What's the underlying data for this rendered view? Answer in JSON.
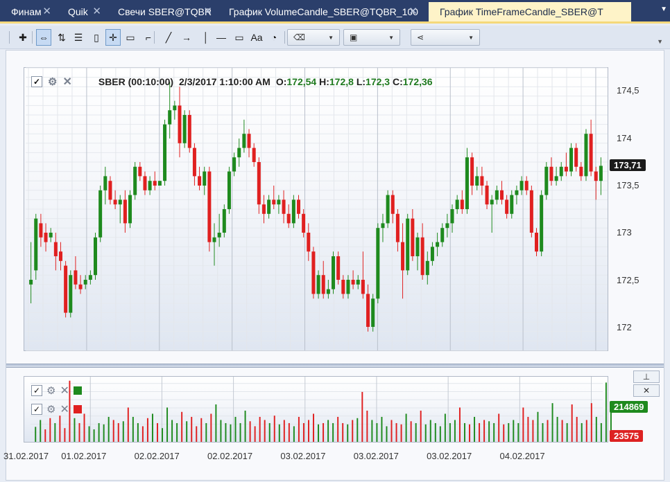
{
  "tabs": [
    {
      "label": "Финам",
      "active": false
    },
    {
      "label": "Quik",
      "active": false
    },
    {
      "label": "Свечи SBER@TQBR",
      "active": false
    },
    {
      "label": "График VolumeCandle_SBER@TQBR_100",
      "active": false
    },
    {
      "label": "График TimeFrameCandle_SBER@T",
      "active": true
    }
  ],
  "tab_close_glyph": "✕",
  "toolbar": {
    "tools": [
      "add-icon",
      "scroll-sync-icon",
      "sort-icon",
      "list-icon",
      "page-icon",
      "crosshair-icon",
      "comment-icon",
      "ruler-icon",
      "trendline-icon",
      "arrow-icon",
      "vline-icon",
      "hline-icon",
      "rectangle-icon",
      "text-icon",
      "gauge-icon"
    ],
    "combos": [
      "eraser-icon",
      "save-icon",
      "share-icon"
    ]
  },
  "legend": {
    "title": "SBER (00:10:00)",
    "timestamp": "2/3/2017 1:10:00 AM",
    "o_label": "O:",
    "o_value": "172,54",
    "h_label": "H:",
    "h_value": "172,8",
    "l_label": "L:",
    "l_value": "172,3",
    "c_label": "C:",
    "c_value": "172,36"
  },
  "colors": {
    "up": "#1e8a1e",
    "down": "#e02020",
    "grid": "#d8dde5",
    "axis": "#555555"
  },
  "chart_data": [
    {
      "type": "candlestick",
      "symbol": "SBER",
      "timeframe": "00:10:00",
      "ylim": [
        171.75,
        174.75
      ],
      "y_ticks": [
        174.5,
        174,
        173.5,
        173,
        172.5,
        172
      ],
      "y_tick_labels": [
        "174,5",
        "174",
        "173,5",
        "173",
        "172,5",
        "172"
      ],
      "last_price_label": "173,71",
      "x_tick_labels": [
        "31.02.2017",
        "01.02.2017",
        "02.02.2017",
        "02.02.2017",
        "03.02.2017",
        "03.02.2017",
        "03.02.2017",
        "04.02.2017"
      ],
      "candles": [
        {
          "o": 172.45,
          "h": 172.9,
          "l": 172.25,
          "c": 172.5
        },
        {
          "o": 172.6,
          "h": 173.2,
          "l": 172.5,
          "c": 173.15
        },
        {
          "o": 173.1,
          "h": 173.2,
          "l": 172.85,
          "c": 172.95
        },
        {
          "o": 173.0,
          "h": 173.1,
          "l": 172.8,
          "c": 172.9
        },
        {
          "o": 172.95,
          "h": 173.05,
          "l": 172.9,
          "c": 173.0
        },
        {
          "o": 172.9,
          "h": 173.0,
          "l": 172.6,
          "c": 172.75
        },
        {
          "o": 172.8,
          "h": 172.9,
          "l": 172.6,
          "c": 172.7
        },
        {
          "o": 172.65,
          "h": 172.7,
          "l": 172.1,
          "c": 172.15
        },
        {
          "o": 172.15,
          "h": 172.6,
          "l": 172.1,
          "c": 172.55
        },
        {
          "o": 172.6,
          "h": 172.75,
          "l": 172.4,
          "c": 172.45
        },
        {
          "o": 172.45,
          "h": 172.55,
          "l": 172.35,
          "c": 172.4
        },
        {
          "o": 172.45,
          "h": 172.55,
          "l": 172.4,
          "c": 172.5
        },
        {
          "o": 172.5,
          "h": 172.6,
          "l": 172.45,
          "c": 172.55
        },
        {
          "o": 172.55,
          "h": 173.0,
          "l": 172.5,
          "c": 172.95
        },
        {
          "o": 172.95,
          "h": 173.5,
          "l": 172.9,
          "c": 173.45
        },
        {
          "o": 173.45,
          "h": 173.7,
          "l": 173.3,
          "c": 173.6
        },
        {
          "o": 173.55,
          "h": 173.6,
          "l": 173.3,
          "c": 173.35
        },
        {
          "o": 173.35,
          "h": 173.45,
          "l": 173.25,
          "c": 173.3
        },
        {
          "o": 173.3,
          "h": 173.4,
          "l": 173.1,
          "c": 173.35
        },
        {
          "o": 173.35,
          "h": 173.45,
          "l": 173.0,
          "c": 173.1
        },
        {
          "o": 173.1,
          "h": 173.45,
          "l": 173.05,
          "c": 173.4
        },
        {
          "o": 173.4,
          "h": 173.75,
          "l": 173.35,
          "c": 173.7
        },
        {
          "o": 173.7,
          "h": 173.75,
          "l": 173.55,
          "c": 173.6
        },
        {
          "o": 173.6,
          "h": 173.65,
          "l": 173.4,
          "c": 173.45
        },
        {
          "o": 173.45,
          "h": 173.6,
          "l": 173.4,
          "c": 173.55
        },
        {
          "o": 173.55,
          "h": 173.65,
          "l": 173.45,
          "c": 173.5
        },
        {
          "o": 173.5,
          "h": 173.55,
          "l": 173.5,
          "c": 173.55
        },
        {
          "o": 173.55,
          "h": 174.2,
          "l": 173.5,
          "c": 174.15
        },
        {
          "o": 174.15,
          "h": 174.6,
          "l": 174.0,
          "c": 174.3
        },
        {
          "o": 174.3,
          "h": 174.4,
          "l": 174.2,
          "c": 174.35
        },
        {
          "o": 174.35,
          "h": 174.55,
          "l": 173.8,
          "c": 173.95
        },
        {
          "o": 173.95,
          "h": 174.3,
          "l": 173.9,
          "c": 174.25
        },
        {
          "o": 174.25,
          "h": 174.3,
          "l": 173.85,
          "c": 173.9
        },
        {
          "o": 173.9,
          "h": 173.95,
          "l": 173.5,
          "c": 173.6
        },
        {
          "o": 173.6,
          "h": 173.7,
          "l": 173.45,
          "c": 173.5
        },
        {
          "o": 173.5,
          "h": 173.7,
          "l": 173.4,
          "c": 173.65
        },
        {
          "o": 173.65,
          "h": 173.7,
          "l": 172.8,
          "c": 172.9
        },
        {
          "o": 172.9,
          "h": 173.1,
          "l": 172.65,
          "c": 172.95
        },
        {
          "o": 172.95,
          "h": 173.2,
          "l": 172.85,
          "c": 173.0
        },
        {
          "o": 173.0,
          "h": 173.3,
          "l": 172.95,
          "c": 173.25
        },
        {
          "o": 173.25,
          "h": 173.7,
          "l": 173.2,
          "c": 173.65
        },
        {
          "o": 173.65,
          "h": 173.85,
          "l": 173.6,
          "c": 173.8
        },
        {
          "o": 173.8,
          "h": 174.0,
          "l": 173.7,
          "c": 173.9
        },
        {
          "o": 173.9,
          "h": 174.2,
          "l": 173.85,
          "c": 174.05
        },
        {
          "o": 174.05,
          "h": 174.1,
          "l": 173.8,
          "c": 173.9
        },
        {
          "o": 173.9,
          "h": 173.95,
          "l": 173.7,
          "c": 173.75
        },
        {
          "o": 173.75,
          "h": 173.8,
          "l": 173.2,
          "c": 173.3
        },
        {
          "o": 173.3,
          "h": 173.4,
          "l": 173.1,
          "c": 173.2
        },
        {
          "o": 173.2,
          "h": 173.4,
          "l": 173.15,
          "c": 173.35
        },
        {
          "o": 173.35,
          "h": 173.5,
          "l": 173.25,
          "c": 173.3
        },
        {
          "o": 173.3,
          "h": 173.4,
          "l": 173.2,
          "c": 173.35
        },
        {
          "o": 173.35,
          "h": 173.45,
          "l": 173.1,
          "c": 173.2
        },
        {
          "o": 173.2,
          "h": 173.3,
          "l": 173.05,
          "c": 173.1
        },
        {
          "o": 173.1,
          "h": 173.4,
          "l": 173.05,
          "c": 173.35
        },
        {
          "o": 173.35,
          "h": 173.4,
          "l": 173.15,
          "c": 173.2
        },
        {
          "o": 173.2,
          "h": 173.25,
          "l": 172.95,
          "c": 173.0
        },
        {
          "o": 173.0,
          "h": 173.1,
          "l": 172.7,
          "c": 172.8
        },
        {
          "o": 172.8,
          "h": 172.85,
          "l": 172.3,
          "c": 172.35
        },
        {
          "o": 172.35,
          "h": 172.6,
          "l": 172.3,
          "c": 172.55
        },
        {
          "o": 172.55,
          "h": 172.7,
          "l": 172.3,
          "c": 172.35
        },
        {
          "o": 172.35,
          "h": 172.5,
          "l": 172.3,
          "c": 172.4
        },
        {
          "o": 172.4,
          "h": 172.8,
          "l": 172.35,
          "c": 172.75
        },
        {
          "o": 172.75,
          "h": 172.8,
          "l": 172.45,
          "c": 172.5
        },
        {
          "o": 172.5,
          "h": 172.55,
          "l": 172.3,
          "c": 172.35
        },
        {
          "o": 172.35,
          "h": 172.55,
          "l": 172.3,
          "c": 172.5
        },
        {
          "o": 172.5,
          "h": 172.6,
          "l": 172.4,
          "c": 172.45
        },
        {
          "o": 172.45,
          "h": 172.55,
          "l": 172.4,
          "c": 172.5
        },
        {
          "o": 172.5,
          "h": 172.8,
          "l": 172.3,
          "c": 172.35
        },
        {
          "o": 172.35,
          "h": 172.45,
          "l": 171.95,
          "c": 172.0
        },
        {
          "o": 172.0,
          "h": 172.35,
          "l": 171.95,
          "c": 172.3
        },
        {
          "o": 172.3,
          "h": 173.1,
          "l": 172.25,
          "c": 173.05
        },
        {
          "o": 173.05,
          "h": 173.2,
          "l": 172.9,
          "c": 173.1
        },
        {
          "o": 173.1,
          "h": 173.45,
          "l": 173.05,
          "c": 173.4
        },
        {
          "o": 173.4,
          "h": 173.45,
          "l": 173.1,
          "c": 173.2
        },
        {
          "o": 173.2,
          "h": 173.25,
          "l": 172.8,
          "c": 172.9
        },
        {
          "o": 172.9,
          "h": 173.1,
          "l": 172.3,
          "c": 172.6
        },
        {
          "o": 172.6,
          "h": 173.2,
          "l": 172.55,
          "c": 173.15
        },
        {
          "o": 173.15,
          "h": 173.25,
          "l": 172.7,
          "c": 172.75
        },
        {
          "o": 172.75,
          "h": 173.0,
          "l": 172.6,
          "c": 172.95
        },
        {
          "o": 172.95,
          "h": 173.1,
          "l": 172.5,
          "c": 172.55
        },
        {
          "o": 172.55,
          "h": 172.8,
          "l": 172.45,
          "c": 172.7
        },
        {
          "o": 172.7,
          "h": 172.9,
          "l": 172.65,
          "c": 172.85
        },
        {
          "o": 172.85,
          "h": 173.0,
          "l": 172.75,
          "c": 172.9
        },
        {
          "o": 172.9,
          "h": 173.1,
          "l": 172.85,
          "c": 173.05
        },
        {
          "o": 173.05,
          "h": 173.2,
          "l": 172.95,
          "c": 173.1
        },
        {
          "o": 173.1,
          "h": 173.3,
          "l": 173.0,
          "c": 173.25
        },
        {
          "o": 173.25,
          "h": 173.4,
          "l": 173.2,
          "c": 173.35
        },
        {
          "o": 173.35,
          "h": 173.45,
          "l": 173.2,
          "c": 173.25
        },
        {
          "o": 173.25,
          "h": 173.9,
          "l": 173.2,
          "c": 173.8
        },
        {
          "o": 173.8,
          "h": 173.85,
          "l": 173.4,
          "c": 173.5
        },
        {
          "o": 173.5,
          "h": 173.7,
          "l": 173.45,
          "c": 173.6
        },
        {
          "o": 173.6,
          "h": 173.7,
          "l": 173.4,
          "c": 173.5
        },
        {
          "o": 173.5,
          "h": 173.55,
          "l": 173.25,
          "c": 173.3
        },
        {
          "o": 173.3,
          "h": 173.4,
          "l": 173.0,
          "c": 173.35
        },
        {
          "o": 173.35,
          "h": 173.5,
          "l": 173.3,
          "c": 173.45
        },
        {
          "o": 173.45,
          "h": 173.55,
          "l": 173.3,
          "c": 173.35
        },
        {
          "o": 173.35,
          "h": 173.4,
          "l": 173.15,
          "c": 173.2
        },
        {
          "o": 173.2,
          "h": 173.45,
          "l": 173.15,
          "c": 173.4
        },
        {
          "o": 173.4,
          "h": 173.5,
          "l": 173.3,
          "c": 173.45
        },
        {
          "o": 173.45,
          "h": 173.6,
          "l": 173.4,
          "c": 173.55
        },
        {
          "o": 173.55,
          "h": 173.6,
          "l": 173.4,
          "c": 173.45
        },
        {
          "o": 173.45,
          "h": 173.5,
          "l": 172.95,
          "c": 173.0
        },
        {
          "o": 173.0,
          "h": 173.05,
          "l": 172.75,
          "c": 172.8
        },
        {
          "o": 172.8,
          "h": 173.45,
          "l": 172.75,
          "c": 173.4
        },
        {
          "o": 173.4,
          "h": 173.75,
          "l": 173.35,
          "c": 173.7
        },
        {
          "o": 173.7,
          "h": 173.8,
          "l": 173.5,
          "c": 173.55
        },
        {
          "o": 173.55,
          "h": 173.7,
          "l": 173.5,
          "c": 173.6
        },
        {
          "o": 173.6,
          "h": 173.75,
          "l": 173.55,
          "c": 173.7
        },
        {
          "o": 173.7,
          "h": 173.85,
          "l": 173.6,
          "c": 173.65
        },
        {
          "o": 173.65,
          "h": 173.95,
          "l": 173.6,
          "c": 173.9
        },
        {
          "o": 173.9,
          "h": 173.95,
          "l": 173.65,
          "c": 173.7
        },
        {
          "o": 173.7,
          "h": 173.75,
          "l": 173.55,
          "c": 173.6
        },
        {
          "o": 173.6,
          "h": 174.1,
          "l": 173.55,
          "c": 174.05
        },
        {
          "o": 174.05,
          "h": 174.2,
          "l": 173.6,
          "c": 173.65
        },
        {
          "o": 173.65,
          "h": 173.7,
          "l": 173.35,
          "c": 173.55
        },
        {
          "o": 173.55,
          "h": 173.8,
          "l": 173.4,
          "c": 173.71
        }
      ]
    },
    {
      "type": "bar",
      "title": "Volume",
      "series": [
        {
          "color": "#1e8a1e",
          "last_value_label": "214869"
        },
        {
          "color": "#e02020",
          "last_value_label": "23575"
        }
      ],
      "values": [
        0.24,
        0.35,
        0.2,
        0.38,
        0.3,
        0.42,
        0.22,
        0.98,
        0.38,
        0.3,
        0.45,
        0.25,
        0.2,
        0.3,
        0.28,
        0.4,
        0.35,
        0.3,
        0.33,
        0.55,
        0.4,
        0.3,
        0.25,
        0.38,
        0.45,
        0.3,
        0.22,
        0.55,
        0.35,
        0.3,
        0.48,
        0.33,
        0.4,
        0.25,
        0.38,
        0.3,
        0.45,
        0.6,
        0.35,
        0.3,
        0.28,
        0.4,
        0.3,
        0.5,
        0.33,
        0.25,
        0.4,
        0.35,
        0.3,
        0.42,
        0.28,
        0.35,
        0.3,
        0.25,
        0.4,
        0.3,
        0.35,
        0.45,
        0.28,
        0.3,
        0.35,
        0.3,
        0.4,
        0.3,
        0.28,
        0.35,
        0.38,
        0.8,
        0.5,
        0.35,
        0.3,
        0.4,
        0.25,
        0.35,
        0.3,
        0.28,
        0.45,
        0.33,
        0.3,
        0.5,
        0.28,
        0.35,
        0.3,
        0.25,
        0.45,
        0.3,
        0.35,
        0.55,
        0.3,
        0.28,
        0.4,
        0.3,
        0.35,
        0.33,
        0.3,
        0.45,
        0.28,
        0.3,
        0.35,
        0.3,
        0.55,
        0.4,
        0.35,
        0.48,
        0.3,
        0.35,
        0.62,
        0.4,
        0.35,
        0.3,
        0.6,
        0.4,
        0.3,
        0.35,
        0.62,
        0.4,
        0.3,
        0.95,
        0.62
      ]
    }
  ]
}
